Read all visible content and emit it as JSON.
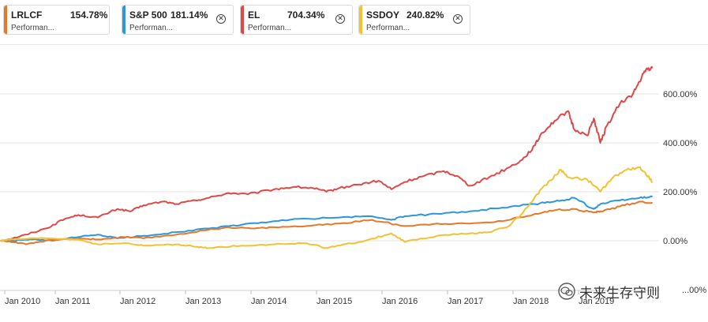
{
  "chips": [
    {
      "name": "LRLCF",
      "value": "154.78%",
      "sub": "Performan...",
      "color": "#e8772a",
      "closable": false
    },
    {
      "name": "S&P 500",
      "value": "181.14%",
      "sub": "Performan...",
      "color": "#2d97dd",
      "closable": true
    },
    {
      "name": "EL",
      "value": "704.34%",
      "sub": "Performan...",
      "color": "#e04848",
      "closable": true
    },
    {
      "name": "SSDOY",
      "value": "240.82%",
      "sub": "Performan...",
      "color": "#f2c233",
      "closable": true
    }
  ],
  "close_glyph": "✕",
  "watermark": {
    "text": "未来生存守则",
    "icon": "wechat-icon"
  },
  "chart_data": {
    "type": "line",
    "x_ticks": [
      "Jan 2010",
      "Jan 2011",
      "Jan 2012",
      "Jan 2013",
      "Jan 2014",
      "Jan 2015",
      "Jan 2016",
      "Jan 2017",
      "Jan 2018",
      "Jan 2019"
    ],
    "y_ticks": [
      {
        "value": 0,
        "label": "0.00%"
      },
      {
        "value": 200,
        "label": "200.00%"
      },
      {
        "value": 400,
        "label": "400.00%"
      },
      {
        "value": 600,
        "label": "600.00%"
      }
    ],
    "y_tick_partial": "...00%",
    "ylim": [
      -200,
      800
    ],
    "xlim": [
      2009.8,
      2019.9
    ],
    "series": [
      {
        "name": "EL",
        "color": "#e04848",
        "x": [
          2009.8,
          2010.0,
          2010.2,
          2010.5,
          2010.8,
          2011.0,
          2011.3,
          2011.6,
          2011.8,
          2012.0,
          2012.3,
          2012.5,
          2012.8,
          2013.0,
          2013.3,
          2013.6,
          2014.0,
          2014.3,
          2014.6,
          2014.8,
          2015.0,
          2015.3,
          2015.6,
          2015.8,
          2016.0,
          2016.3,
          2016.6,
          2016.8,
          2017.0,
          2017.3,
          2017.6,
          2017.8,
          2018.0,
          2018.1,
          2018.3,
          2018.5,
          2018.6,
          2018.8,
          2018.9,
          2019.0,
          2019.1,
          2019.3,
          2019.5,
          2019.6,
          2019.7,
          2019.8
        ],
        "y": [
          0,
          10,
          25,
          50,
          90,
          105,
          95,
          130,
          120,
          145,
          160,
          150,
          165,
          175,
          195,
          190,
          210,
          220,
          215,
          200,
          215,
          230,
          245,
          210,
          240,
          265,
          285,
          265,
          225,
          260,
          300,
          330,
          390,
          440,
          490,
          530,
          455,
          430,
          500,
          400,
          470,
          560,
          600,
          650,
          700,
          705
        ]
      },
      {
        "name": "S&P 500",
        "color": "#2d97dd",
        "x": [
          2009.8,
          2010.0,
          2010.3,
          2010.6,
          2011.0,
          2011.3,
          2011.6,
          2012.0,
          2012.5,
          2013.0,
          2013.5,
          2014.0,
          2014.5,
          2015.0,
          2015.5,
          2015.8,
          2016.0,
          2016.5,
          2017.0,
          2017.5,
          2018.0,
          2018.3,
          2018.6,
          2018.9,
          2019.0,
          2019.3,
          2019.6,
          2019.8
        ],
        "y": [
          0,
          0,
          5,
          0,
          15,
          25,
          10,
          20,
          35,
          50,
          65,
          80,
          90,
          95,
          100,
          85,
          100,
          110,
          120,
          135,
          150,
          160,
          175,
          130,
          150,
          165,
          175,
          181
        ]
      },
      {
        "name": "LRLCF",
        "color": "#e8772a",
        "x": [
          2009.8,
          2010.0,
          2010.2,
          2010.5,
          2011.0,
          2011.3,
          2011.7,
          2012.0,
          2012.5,
          2013.0,
          2013.3,
          2013.7,
          2014.0,
          2014.5,
          2015.0,
          2015.5,
          2016.0,
          2016.5,
          2017.0,
          2017.5,
          2018.0,
          2018.3,
          2018.6,
          2018.9,
          2019.0,
          2019.3,
          2019.6,
          2019.8
        ],
        "y": [
          0,
          -5,
          -15,
          0,
          10,
          5,
          15,
          10,
          25,
          45,
          55,
          50,
          55,
          60,
          70,
          85,
          60,
          70,
          70,
          80,
          110,
          125,
          130,
          115,
          120,
          140,
          160,
          155
        ]
      },
      {
        "name": "SSDOY",
        "color": "#f2c233",
        "x": [
          2009.8,
          2010.0,
          2010.5,
          2011.0,
          2011.3,
          2011.7,
          2012.0,
          2012.5,
          2012.8,
          2013.0,
          2013.5,
          2014.0,
          2014.5,
          2014.8,
          2015.0,
          2015.4,
          2015.8,
          2016.0,
          2016.5,
          2017.0,
          2017.3,
          2017.6,
          2017.8,
          2018.0,
          2018.2,
          2018.4,
          2018.5,
          2018.8,
          2019.0,
          2019.2,
          2019.4,
          2019.6,
          2019.7,
          2019.8
        ],
        "y": [
          0,
          5,
          10,
          5,
          -15,
          -10,
          -20,
          -15,
          -25,
          -30,
          -20,
          -15,
          -10,
          -30,
          -20,
          0,
          30,
          -5,
          20,
          30,
          35,
          60,
          110,
          180,
          240,
          290,
          260,
          250,
          200,
          260,
          290,
          300,
          270,
          241
        ]
      }
    ]
  }
}
